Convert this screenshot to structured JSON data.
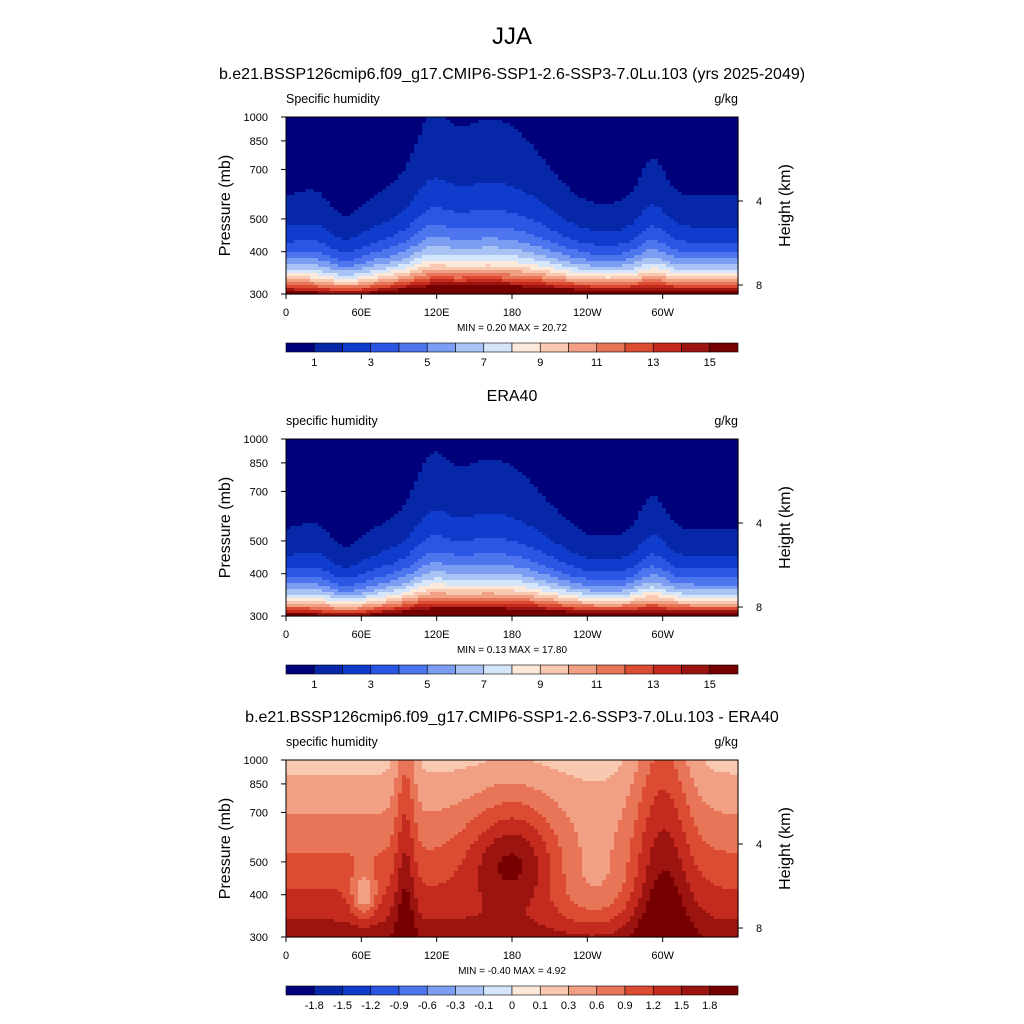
{
  "figure": {
    "title": "JJA",
    "panel_titles": [
      "b.e21.BSSP126cmip6.f09_g17.CMIP6-SSP1-2.6-SSP3-7.0Lu.103 (yrs 2025-2049)",
      "ERA40",
      "b.e21.BSSP126cmip6.f09_g17.CMIP6-SSP1-2.6-SSP3-7.0Lu.103 - ERA40"
    ]
  },
  "chart_data": [
    {
      "type": "heatmap",
      "kind": "contour-filled pressure-longitude cross section",
      "title": "b.e21.BSSP126cmip6.f09_g17.CMIP6-SSP1-2.6-SSP3-7.0Lu.103 (yrs 2025-2049)",
      "left_label": "Specific humidity",
      "units": "g/kg",
      "ylabel": "Pressure (mb)",
      "y2label": "Height (km)",
      "x_ticks": [
        "0",
        "60E",
        "120E",
        "180",
        "120W",
        "60W"
      ],
      "x_tick_lon": [
        0,
        60,
        120,
        180,
        240,
        300
      ],
      "xlim": [
        0,
        360
      ],
      "y_ticks": [
        "300",
        "400",
        "500",
        "700",
        "850",
        "1000"
      ],
      "y_tick_p": [
        300,
        400,
        500,
        700,
        850,
        1000
      ],
      "ylim": [
        1000,
        300
      ],
      "y2_ticks": [
        "8",
        "4"
      ],
      "y2_tick_km": [
        8,
        4
      ],
      "stats": "MIN =   0.20  MAX =  20.72",
      "colorbar": {
        "labels": [
          "1",
          "3",
          "5",
          "7",
          "9",
          "11",
          "13",
          "15"
        ],
        "colors": [
          "#00007a",
          "#0627a8",
          "#0f3ccc",
          "#2b55e3",
          "#4c75ee",
          "#7b9df2",
          "#a9c3f5",
          "#d5e6fb",
          "#fde9da",
          "#f9c8b0",
          "#f2a083",
          "#e87558",
          "#dc4c33",
          "#c42a1e",
          "#9b1410",
          "#760000"
        ]
      },
      "surface": "land"
    },
    {
      "type": "heatmap",
      "kind": "contour-filled pressure-longitude cross section",
      "title": "ERA40",
      "left_label": "specific humidity",
      "units": "g/kg",
      "ylabel": "Pressure (mb)",
      "y2label": "Height (km)",
      "x_ticks": [
        "0",
        "60E",
        "120E",
        "180",
        "120W",
        "60W"
      ],
      "x_tick_lon": [
        0,
        60,
        120,
        180,
        240,
        300
      ],
      "xlim": [
        0,
        360
      ],
      "y_ticks": [
        "300",
        "400",
        "500",
        "700",
        "850",
        "1000"
      ],
      "y_tick_p": [
        300,
        400,
        500,
        700,
        850,
        1000
      ],
      "ylim": [
        1000,
        300
      ],
      "y2_ticks": [
        "8",
        "4"
      ],
      "y2_tick_km": [
        8,
        4
      ],
      "stats": "MIN =   0.13  MAX =  17.80",
      "colorbar": {
        "labels": [
          "1",
          "3",
          "5",
          "7",
          "9",
          "11",
          "13",
          "15"
        ],
        "colors": [
          "#00007a",
          "#0627a8",
          "#0f3ccc",
          "#2b55e3",
          "#4c75ee",
          "#7b9df2",
          "#a9c3f5",
          "#d5e6fb",
          "#fde9da",
          "#f9c8b0",
          "#f2a083",
          "#e87558",
          "#dc4c33",
          "#c42a1e",
          "#9b1410",
          "#760000"
        ]
      },
      "surface": "none"
    },
    {
      "type": "heatmap",
      "kind": "contour-filled pressure-longitude cross section (difference)",
      "title": "b.e21.BSSP126cmip6.f09_g17.CMIP6-SSP1-2.6-SSP3-7.0Lu.103 - ERA40",
      "left_label": "specific humidity",
      "units": "g/kg",
      "ylabel": "Pressure (mb)",
      "y2label": "Height (km)",
      "x_ticks": [
        "0",
        "60E",
        "120E",
        "180",
        "120W",
        "60W"
      ],
      "x_tick_lon": [
        0,
        60,
        120,
        180,
        240,
        300
      ],
      "xlim": [
        0,
        360
      ],
      "y_ticks": [
        "300",
        "400",
        "500",
        "700",
        "850",
        "1000"
      ],
      "y_tick_p": [
        300,
        400,
        500,
        700,
        850,
        1000
      ],
      "ylim": [
        1000,
        300
      ],
      "y2_ticks": [
        "8",
        "4"
      ],
      "y2_tick_km": [
        8,
        4
      ],
      "stats": "MIN =  -0.40  MAX =   4.92",
      "colorbar": {
        "labels": [
          "-1.8",
          "-1.5",
          "-1.2",
          "-0.9",
          "-0.6",
          "-0.3",
          "-0.1",
          "0",
          "0.1",
          "0.3",
          "0.6",
          "0.9",
          "1.2",
          "1.5",
          "1.8"
        ],
        "colors": [
          "#00007a",
          "#0627a8",
          "#0f3ccc",
          "#2b55e3",
          "#4c75ee",
          "#7b9df2",
          "#a9c3f5",
          "#d5e6fb",
          "#fde9da",
          "#f9c8b0",
          "#f2a083",
          "#e87558",
          "#dc4c33",
          "#c42a1e",
          "#9b1410",
          "#760000"
        ]
      },
      "surface": "land"
    }
  ]
}
